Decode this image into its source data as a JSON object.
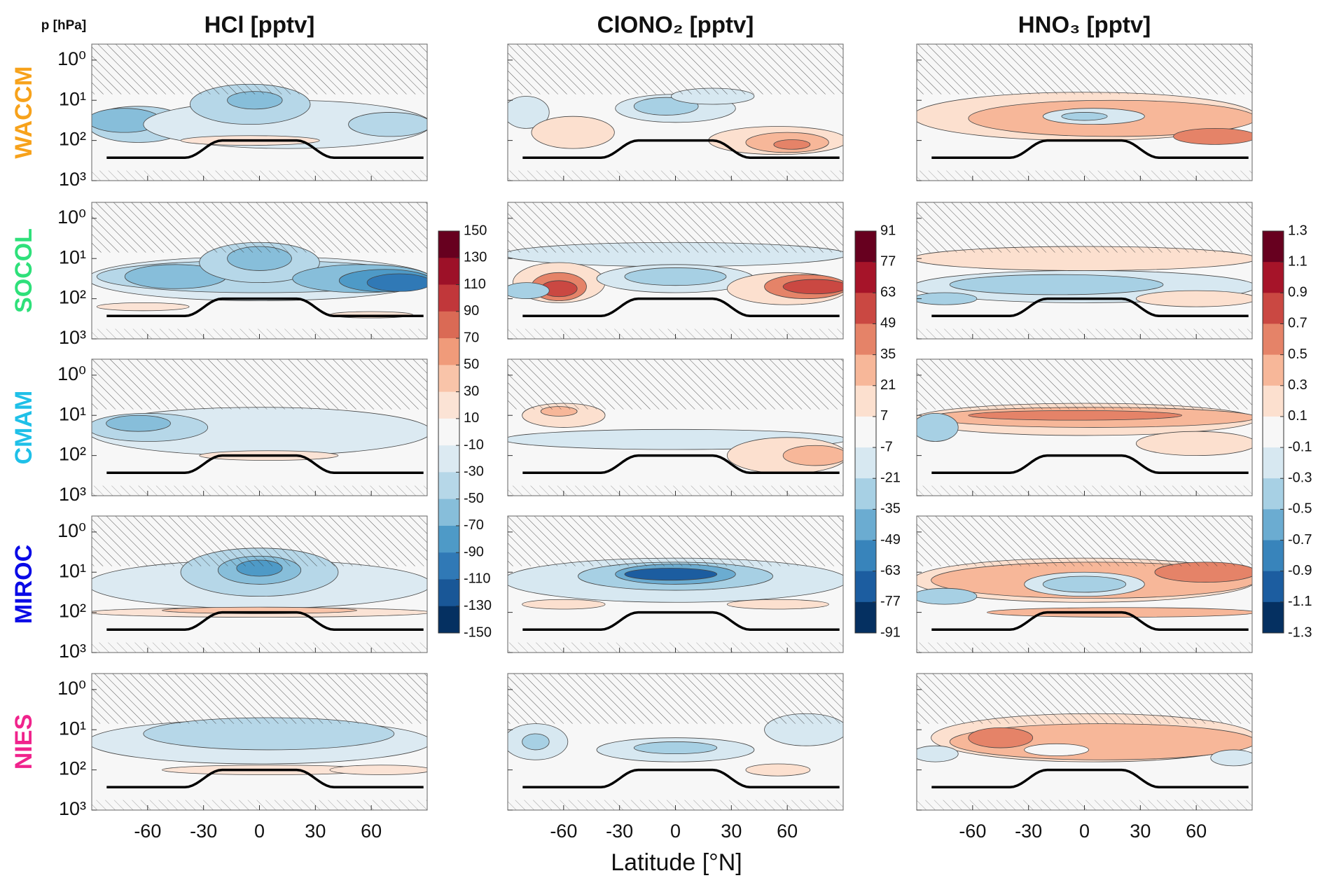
{
  "y_label": "p [hPa]",
  "x_label": "Latitude [°N]",
  "models": [
    {
      "name": "WACCM",
      "color": "#f7a21b"
    },
    {
      "name": "SOCOL",
      "color": "#2ee07a"
    },
    {
      "name": "CMAM",
      "color": "#1fc0e8"
    },
    {
      "name": "MIROC",
      "color": "#0a0ae6"
    },
    {
      "name": "NIES",
      "color": "#f0238c"
    }
  ],
  "colormap": [
    "#67001f",
    "#b2182b",
    "#d6604d",
    "#f4a582",
    "#fddbc7",
    "#f7f7f7",
    "#d1e5f0",
    "#92c5de",
    "#4393c3",
    "#2166ac",
    "#053061"
  ],
  "chart_data": [
    {
      "type": "contour",
      "title": "HCl [pptv]",
      "xlim": [
        -90,
        90
      ],
      "xticks": [
        -60,
        -30,
        0,
        30,
        60
      ],
      "ylim": [
        1000,
        0.4
      ],
      "log_y": true,
      "yticks": [
        {
          "value": 1,
          "label": "10⁰"
        },
        {
          "value": 10,
          "label": "10¹"
        },
        {
          "value": 100,
          "label": "10²"
        },
        {
          "value": 1000,
          "label": "10³"
        }
      ],
      "colorbar_ticks": [
        150,
        130,
        110,
        90,
        70,
        50,
        30,
        10,
        -10,
        -30,
        -50,
        -70,
        -90,
        -110,
        -130,
        -150
      ]
    },
    {
      "type": "contour",
      "title": "ClONO₂ [pptv]",
      "xlim": [
        -90,
        90
      ],
      "xticks": [
        -60,
        -30,
        0,
        30,
        60
      ],
      "ylim": [
        1000,
        0.4
      ],
      "log_y": true,
      "yticks": [
        {
          "value": 1,
          "label": "10⁰"
        },
        {
          "value": 10,
          "label": "10¹"
        },
        {
          "value": 100,
          "label": "10²"
        },
        {
          "value": 1000,
          "label": "10³"
        }
      ],
      "colorbar_ticks": [
        91,
        77,
        63,
        49,
        35,
        21,
        7,
        -7,
        -21,
        -35,
        -49,
        -63,
        -77,
        -91
      ]
    },
    {
      "type": "contour",
      "title": "HNO₃ [pptv]",
      "xlim": [
        -90,
        90
      ],
      "xticks": [
        -60,
        -30,
        0,
        30,
        60
      ],
      "ylim": [
        1000,
        0.4
      ],
      "log_y": true,
      "yticks": [
        {
          "value": 1,
          "label": "10⁰"
        },
        {
          "value": 10,
          "label": "10¹"
        },
        {
          "value": 100,
          "label": "10²"
        },
        {
          "value": 1000,
          "label": "10³"
        }
      ],
      "colorbar_ticks": [
        1.3,
        1.1,
        0.9,
        0.7,
        0.5,
        0.3,
        0.1,
        -0.1,
        -0.3,
        -0.5,
        -0.7,
        -0.9,
        -1.1,
        -1.3
      ]
    }
  ]
}
